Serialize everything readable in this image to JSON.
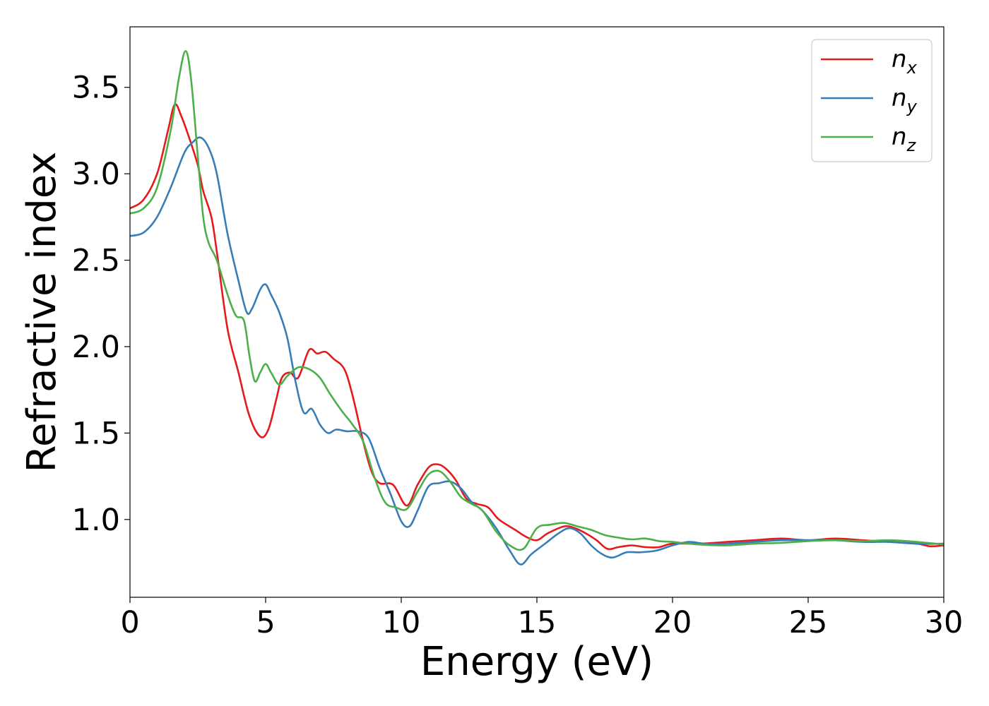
{
  "chart_data": {
    "type": "line",
    "title": "",
    "xlabel": "Energy (eV)",
    "ylabel": "Refractive index",
    "xlim": [
      0,
      30
    ],
    "ylim": [
      0.55,
      3.85
    ],
    "xticks": [
      0,
      5,
      10,
      15,
      20,
      25,
      30
    ],
    "yticks": [
      1.0,
      1.5,
      2.0,
      2.5,
      3.0,
      3.5
    ],
    "xtick_labels": [
      "0",
      "5",
      "10",
      "15",
      "20",
      "25",
      "30"
    ],
    "ytick_labels": [
      "1.0",
      "1.5",
      "2.0",
      "2.5",
      "3.0",
      "3.5"
    ],
    "grid": false,
    "legend": "top-right",
    "series": [
      {
        "name": "n_x",
        "label_base": "n",
        "label_sub": "x",
        "color": "#e41a1c",
        "points": [
          [
            0,
            2.8
          ],
          [
            0.5,
            2.85
          ],
          [
            1.0,
            3.0
          ],
          [
            1.4,
            3.25
          ],
          [
            1.65,
            3.4
          ],
          [
            1.9,
            3.33
          ],
          [
            2.2,
            3.2
          ],
          [
            2.5,
            3.05
          ],
          [
            2.7,
            2.9
          ],
          [
            3.0,
            2.75
          ],
          [
            3.2,
            2.55
          ],
          [
            3.6,
            2.1
          ],
          [
            4.0,
            1.85
          ],
          [
            4.4,
            1.6
          ],
          [
            4.8,
            1.48
          ],
          [
            5.1,
            1.52
          ],
          [
            5.4,
            1.7
          ],
          [
            5.6,
            1.82
          ],
          [
            5.9,
            1.85
          ],
          [
            6.2,
            1.82
          ],
          [
            6.6,
            1.98
          ],
          [
            6.9,
            1.96
          ],
          [
            7.2,
            1.97
          ],
          [
            7.5,
            1.93
          ],
          [
            7.9,
            1.87
          ],
          [
            8.2,
            1.72
          ],
          [
            8.6,
            1.45
          ],
          [
            8.9,
            1.28
          ],
          [
            9.2,
            1.21
          ],
          [
            9.7,
            1.2
          ],
          [
            10.2,
            1.08
          ],
          [
            10.6,
            1.2
          ],
          [
            11.0,
            1.3
          ],
          [
            11.3,
            1.32
          ],
          [
            11.6,
            1.3
          ],
          [
            12.0,
            1.23
          ],
          [
            12.4,
            1.12
          ],
          [
            12.8,
            1.09
          ],
          [
            13.2,
            1.07
          ],
          [
            13.6,
            1.0
          ],
          [
            14.2,
            0.94
          ],
          [
            14.6,
            0.9
          ],
          [
            15.0,
            0.88
          ],
          [
            15.4,
            0.92
          ],
          [
            16.0,
            0.96
          ],
          [
            16.4,
            0.95
          ],
          [
            16.8,
            0.92
          ],
          [
            17.2,
            0.88
          ],
          [
            17.6,
            0.83
          ],
          [
            18.0,
            0.84
          ],
          [
            18.5,
            0.85
          ],
          [
            19.0,
            0.84
          ],
          [
            19.5,
            0.84
          ],
          [
            20.0,
            0.86
          ],
          [
            21,
            0.86
          ],
          [
            22,
            0.87
          ],
          [
            23,
            0.88
          ],
          [
            24,
            0.89
          ],
          [
            25,
            0.88
          ],
          [
            26,
            0.89
          ],
          [
            27,
            0.88
          ],
          [
            28,
            0.87
          ],
          [
            29,
            0.86
          ],
          [
            29.5,
            0.845
          ],
          [
            30,
            0.85
          ]
        ]
      },
      {
        "name": "n_y",
        "label_base": "n",
        "label_sub": "y",
        "color": "#377eb8",
        "points": [
          [
            0,
            2.64
          ],
          [
            0.5,
            2.66
          ],
          [
            1.0,
            2.75
          ],
          [
            1.5,
            2.92
          ],
          [
            2.0,
            3.12
          ],
          [
            2.3,
            3.18
          ],
          [
            2.6,
            3.21
          ],
          [
            2.9,
            3.15
          ],
          [
            3.2,
            3.0
          ],
          [
            3.6,
            2.65
          ],
          [
            4.0,
            2.38
          ],
          [
            4.3,
            2.2
          ],
          [
            4.5,
            2.22
          ],
          [
            4.8,
            2.33
          ],
          [
            5.0,
            2.36
          ],
          [
            5.2,
            2.3
          ],
          [
            5.5,
            2.2
          ],
          [
            5.8,
            2.05
          ],
          [
            6.1,
            1.8
          ],
          [
            6.4,
            1.62
          ],
          [
            6.7,
            1.64
          ],
          [
            7.0,
            1.55
          ],
          [
            7.3,
            1.5
          ],
          [
            7.6,
            1.52
          ],
          [
            8.0,
            1.51
          ],
          [
            8.4,
            1.51
          ],
          [
            8.8,
            1.47
          ],
          [
            9.2,
            1.3
          ],
          [
            9.6,
            1.15
          ],
          [
            10.0,
            0.99
          ],
          [
            10.3,
            0.96
          ],
          [
            10.6,
            1.05
          ],
          [
            11.0,
            1.19
          ],
          [
            11.4,
            1.21
          ],
          [
            11.8,
            1.22
          ],
          [
            12.2,
            1.18
          ],
          [
            12.6,
            1.1
          ],
          [
            13.0,
            1.05
          ],
          [
            13.5,
            0.95
          ],
          [
            14.0,
            0.82
          ],
          [
            14.4,
            0.74
          ],
          [
            14.8,
            0.8
          ],
          [
            15.3,
            0.86
          ],
          [
            15.8,
            0.92
          ],
          [
            16.2,
            0.95
          ],
          [
            16.6,
            0.92
          ],
          [
            17.0,
            0.85
          ],
          [
            17.4,
            0.8
          ],
          [
            17.8,
            0.78
          ],
          [
            18.3,
            0.81
          ],
          [
            18.8,
            0.81
          ],
          [
            19.4,
            0.82
          ],
          [
            20.0,
            0.85
          ],
          [
            20.6,
            0.87
          ],
          [
            21.2,
            0.86
          ],
          [
            22,
            0.86
          ],
          [
            23,
            0.87
          ],
          [
            24,
            0.88
          ],
          [
            25,
            0.88
          ],
          [
            26,
            0.88
          ],
          [
            27,
            0.87
          ],
          [
            28,
            0.87
          ],
          [
            29,
            0.86
          ],
          [
            30,
            0.86
          ]
        ]
      },
      {
        "name": "n_z",
        "label_base": "n",
        "label_sub": "z",
        "color": "#4daf4a",
        "points": [
          [
            0,
            2.77
          ],
          [
            0.5,
            2.8
          ],
          [
            1.0,
            2.92
          ],
          [
            1.5,
            3.25
          ],
          [
            1.8,
            3.55
          ],
          [
            2.05,
            3.71
          ],
          [
            2.25,
            3.55
          ],
          [
            2.5,
            3.1
          ],
          [
            2.7,
            2.75
          ],
          [
            2.9,
            2.6
          ],
          [
            3.2,
            2.5
          ],
          [
            3.6,
            2.3
          ],
          [
            3.9,
            2.18
          ],
          [
            4.2,
            2.15
          ],
          [
            4.4,
            1.95
          ],
          [
            4.6,
            1.8
          ],
          [
            4.8,
            1.85
          ],
          [
            5.0,
            1.9
          ],
          [
            5.2,
            1.85
          ],
          [
            5.5,
            1.78
          ],
          [
            5.8,
            1.83
          ],
          [
            6.2,
            1.88
          ],
          [
            6.6,
            1.87
          ],
          [
            7.0,
            1.82
          ],
          [
            7.4,
            1.72
          ],
          [
            7.8,
            1.63
          ],
          [
            8.2,
            1.55
          ],
          [
            8.6,
            1.45
          ],
          [
            9.0,
            1.25
          ],
          [
            9.4,
            1.1
          ],
          [
            9.8,
            1.07
          ],
          [
            10.2,
            1.06
          ],
          [
            10.6,
            1.16
          ],
          [
            11.0,
            1.26
          ],
          [
            11.4,
            1.28
          ],
          [
            11.8,
            1.22
          ],
          [
            12.2,
            1.13
          ],
          [
            12.6,
            1.09
          ],
          [
            13.0,
            1.05
          ],
          [
            13.5,
            0.93
          ],
          [
            14.0,
            0.85
          ],
          [
            14.5,
            0.83
          ],
          [
            15.0,
            0.95
          ],
          [
            15.5,
            0.97
          ],
          [
            16.0,
            0.98
          ],
          [
            16.5,
            0.96
          ],
          [
            17.0,
            0.94
          ],
          [
            17.5,
            0.91
          ],
          [
            18.0,
            0.895
          ],
          [
            18.5,
            0.885
          ],
          [
            19.0,
            0.89
          ],
          [
            19.5,
            0.875
          ],
          [
            20.0,
            0.87
          ],
          [
            21.0,
            0.855
          ],
          [
            22.0,
            0.85
          ],
          [
            23.0,
            0.86
          ],
          [
            24.0,
            0.865
          ],
          [
            25.0,
            0.875
          ],
          [
            26.0,
            0.88
          ],
          [
            27.0,
            0.875
          ],
          [
            28.0,
            0.88
          ],
          [
            29.0,
            0.87
          ],
          [
            30,
            0.855
          ]
        ]
      }
    ]
  }
}
